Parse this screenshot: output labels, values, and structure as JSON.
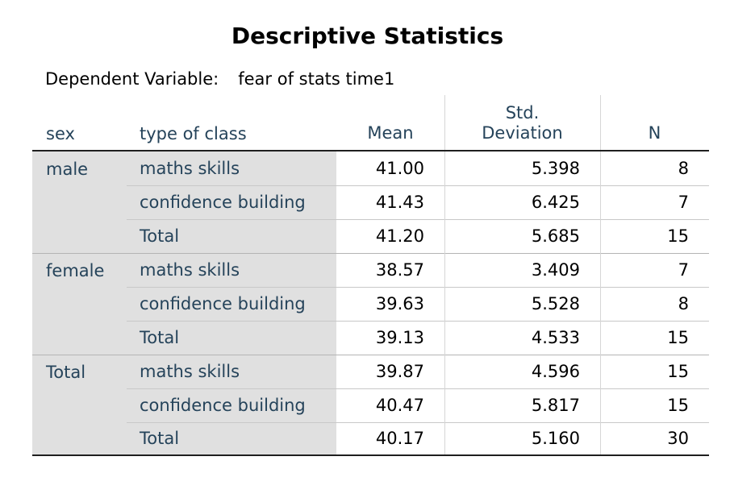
{
  "title": "Descriptive Statistics",
  "subtitle": {
    "label": "Dependent Variable:",
    "value": "fear of stats time1"
  },
  "columns": {
    "sex": "sex",
    "type": "type of class",
    "mean": "Mean",
    "std_line1": "Std.",
    "std_line2": "Deviation",
    "n": "N"
  },
  "groups": [
    {
      "label": "male",
      "rows": [
        {
          "type": "maths skills",
          "mean": "41.00",
          "std": "5.398",
          "n": "8"
        },
        {
          "type": "confidence building",
          "mean": "41.43",
          "std": "6.425",
          "n": "7"
        },
        {
          "type": "Total",
          "mean": "41.20",
          "std": "5.685",
          "n": "15"
        }
      ]
    },
    {
      "label": "female",
      "rows": [
        {
          "type": "maths skills",
          "mean": "38.57",
          "std": "3.409",
          "n": "7"
        },
        {
          "type": "confidence building",
          "mean": "39.63",
          "std": "5.528",
          "n": "8"
        },
        {
          "type": "Total",
          "mean": "39.13",
          "std": "4.533",
          "n": "15"
        }
      ]
    },
    {
      "label": "Total",
      "rows": [
        {
          "type": "maths skills",
          "mean": "39.87",
          "std": "4.596",
          "n": "15"
        },
        {
          "type": "confidence building",
          "mean": "40.47",
          "std": "5.817",
          "n": "15"
        },
        {
          "type": "Total",
          "mean": "40.17",
          "std": "5.160",
          "n": "30"
        }
      ]
    }
  ]
}
